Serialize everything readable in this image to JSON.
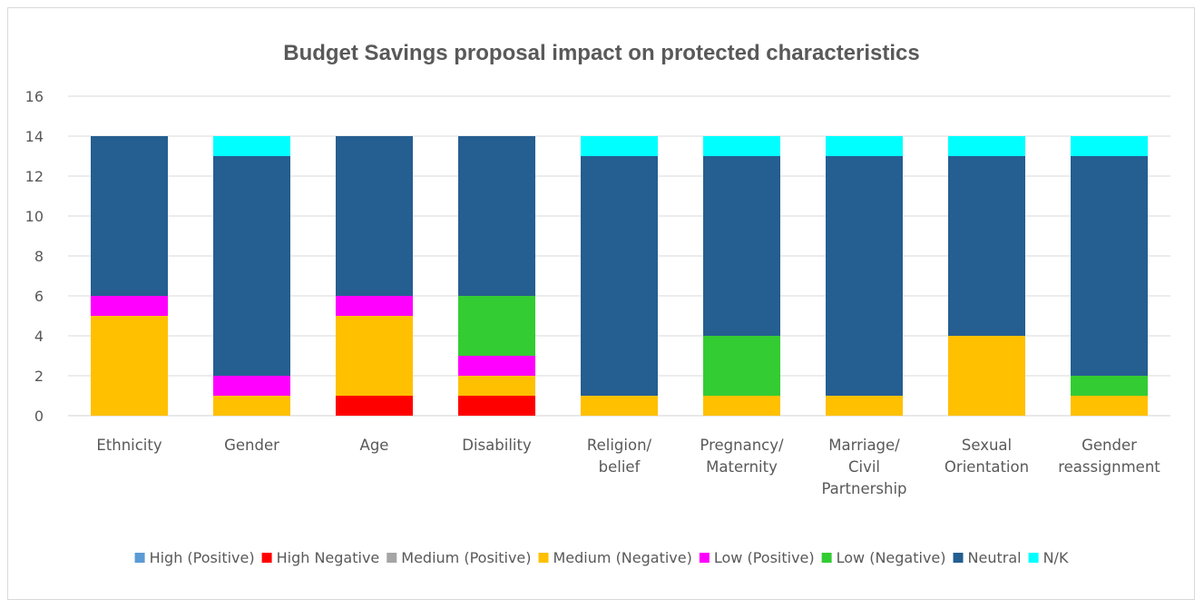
{
  "chart_data": {
    "type": "bar",
    "stacked": true,
    "title": "Budget Savings proposal impact on protected characteristics",
    "xlabel": "",
    "ylabel": "",
    "ylim": [
      0,
      16
    ],
    "yticks": [
      0,
      2,
      4,
      6,
      8,
      10,
      12,
      14,
      16
    ],
    "grid": true,
    "legend_position": "bottom",
    "categories": [
      [
        "Ethnicity"
      ],
      [
        "Gender"
      ],
      [
        "Age"
      ],
      [
        "Disability"
      ],
      [
        "Religion/",
        "belief"
      ],
      [
        "Pregnancy/",
        "Maternity"
      ],
      [
        "Marriage/",
        "Civil",
        "Partnership"
      ],
      [
        "Sexual",
        "Orientation"
      ],
      [
        "Gender",
        "reassignment"
      ]
    ],
    "series": [
      {
        "name": "High (Positive)",
        "color": "#5b9bd5",
        "values": [
          0,
          0,
          0,
          0,
          0,
          0,
          0,
          0,
          0
        ]
      },
      {
        "name": "High Negative",
        "color": "#ff0000",
        "values": [
          0,
          0,
          1,
          1,
          0,
          0,
          0,
          0,
          0
        ]
      },
      {
        "name": "Medium (Positive)",
        "color": "#a5a5a5",
        "values": [
          0,
          0,
          0,
          0,
          0,
          0,
          0,
          0,
          0
        ]
      },
      {
        "name": "Medium (Negative)",
        "color": "#ffc000",
        "values": [
          5,
          1,
          4,
          1,
          1,
          1,
          1,
          4,
          1
        ]
      },
      {
        "name": "Low (Positive)",
        "color": "#ff00ff",
        "values": [
          1,
          1,
          1,
          1,
          0,
          0,
          0,
          0,
          0
        ]
      },
      {
        "name": "Low (Negative)",
        "color": "#33cc33",
        "values": [
          0,
          0,
          0,
          3,
          0,
          3,
          0,
          0,
          1
        ]
      },
      {
        "name": "Neutral",
        "color": "#255e91",
        "values": [
          8,
          11,
          8,
          8,
          12,
          9,
          12,
          9,
          11
        ]
      },
      {
        "name": "N/K",
        "color": "#00ffff",
        "values": [
          0,
          1,
          0,
          0,
          1,
          1,
          1,
          1,
          1
        ]
      }
    ]
  }
}
